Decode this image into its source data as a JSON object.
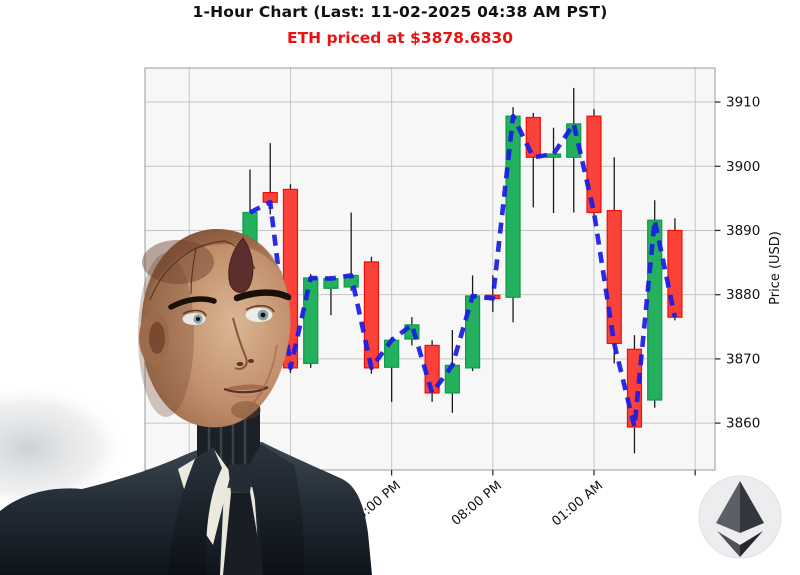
{
  "header": {
    "title": "1-Hour Chart (Last: 11-02-2025 04:38 AM PST)",
    "subtitle": "ETH priced at $3878.6830",
    "title_color": "#111111",
    "subtitle_color": "#ee1111"
  },
  "chart_data": {
    "type": "candlestick",
    "title": "1-Hour Chart",
    "symbol": "ETH",
    "interval": "1 hour",
    "last_price": "3878.6830",
    "ylabel": "Price (USD)",
    "ylim": [
      3852.7,
      3915.3
    ],
    "y_ticks": [
      3860,
      3870,
      3880,
      3890,
      3900,
      3910
    ],
    "x_ticks": [
      {
        "pos": -3,
        "label": ""
      },
      {
        "pos": 2,
        "label": ""
      },
      {
        "pos": 7,
        "label": "03:00 PM"
      },
      {
        "pos": 12,
        "label": "08:00 PM"
      },
      {
        "pos": 17,
        "label": "01:00 AM"
      },
      {
        "pos": 22,
        "label": ""
      }
    ],
    "grid": true,
    "legend": "none",
    "up_color": "#24b15d",
    "up_edge_color": "#0c9a46",
    "down_color": "#f8423a",
    "down_edge_color": "#ef1007",
    "wick_color": "#1a1a1a",
    "close_line_color": "#1b1be4",
    "close_line_style": "dashed",
    "candles": [
      {
        "o": 3888.0,
        "h": 3899.5,
        "l": 3886.5,
        "c": 3892.8
      },
      {
        "o": 3895.9,
        "h": 3903.6,
        "l": 3892.5,
        "c": 3894.4
      },
      {
        "o": 3896.4,
        "h": 3897.2,
        "l": 3867.8,
        "c": 3868.6
      },
      {
        "o": 3869.3,
        "h": 3883.2,
        "l": 3868.6,
        "c": 3882.6
      },
      {
        "o": 3881.0,
        "h": 3882.9,
        "l": 3876.8,
        "c": 3882.5
      },
      {
        "o": 3881.2,
        "h": 3892.8,
        "l": 3880.6,
        "c": 3883.0
      },
      {
        "o": 3885.1,
        "h": 3885.9,
        "l": 3867.7,
        "c": 3868.6
      },
      {
        "o": 3868.7,
        "h": 3873.4,
        "l": 3863.3,
        "c": 3872.9
      },
      {
        "o": 3873.1,
        "h": 3876.5,
        "l": 3872.1,
        "c": 3875.3
      },
      {
        "o": 3872.1,
        "h": 3872.9,
        "l": 3863.3,
        "c": 3864.7
      },
      {
        "o": 3864.7,
        "h": 3874.5,
        "l": 3861.6,
        "c": 3869.0
      },
      {
        "o": 3868.6,
        "h": 3883.0,
        "l": 3868.1,
        "c": 3879.8
      },
      {
        "o": 3879.9,
        "h": 3883.0,
        "l": 3877.3,
        "c": 3879.4
      },
      {
        "o": 3879.6,
        "h": 3909.2,
        "l": 3875.7,
        "c": 3907.8
      },
      {
        "o": 3907.6,
        "h": 3908.3,
        "l": 3893.6,
        "c": 3901.4
      },
      {
        "o": 3901.4,
        "h": 3906.0,
        "l": 3892.7,
        "c": 3901.9
      },
      {
        "o": 3901.4,
        "h": 3912.2,
        "l": 3892.8,
        "c": 3906.6
      },
      {
        "o": 3907.8,
        "h": 3908.9,
        "l": 3892.2,
        "c": 3892.8
      },
      {
        "o": 3893.1,
        "h": 3901.4,
        "l": 3869.3,
        "c": 3872.4
      },
      {
        "o": 3871.5,
        "h": 3873.7,
        "l": 3855.3,
        "c": 3859.4
      },
      {
        "o": 3863.6,
        "h": 3894.7,
        "l": 3862.4,
        "c": 3891.6
      },
      {
        "o": 3890.0,
        "h": 3891.9,
        "l": 3876.0,
        "c": 3876.5
      }
    ]
  },
  "icons": {
    "ethereum_logo": "eth-diamond-in-circle"
  },
  "hero_image": {
    "alt": "humanoid android with bald synthetic head wearing dark business suit, white shirt and dark tie"
  }
}
